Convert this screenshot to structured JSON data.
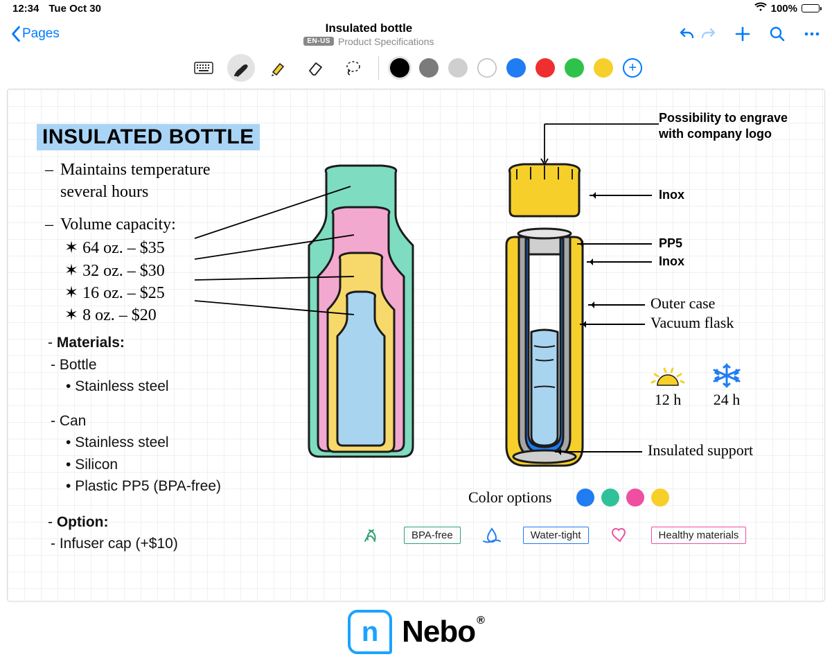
{
  "status": {
    "time": "12:34",
    "date": "Tue Oct 30",
    "battery_pct": "100%"
  },
  "nav": {
    "back_label": "Pages",
    "title": "Insulated bottle",
    "lang_badge": "EN-US",
    "subtitle": "Product Specifications"
  },
  "toolbar": {
    "tools": [
      "keyboard",
      "pen",
      "highlighter",
      "eraser",
      "lasso"
    ],
    "active_tool_index": 1,
    "colors": [
      "#000000",
      "#7b7b7b",
      "#cfcfcf",
      "#ffffff",
      "#1f7cf2",
      "#ef2f2f",
      "#2fc24b",
      "#f6cf2a"
    ],
    "selected_color_index": 0,
    "white_index": 3,
    "add_color_accent": "#007aff"
  },
  "page": {
    "title": "INSULATED BOTTLE",
    "title_highlight": "#a9d4f5",
    "hand_notes": {
      "line1": "Maintains temperature",
      "line1b": "several hours",
      "line2": "Volume capacity:",
      "prices": [
        {
          "size": "64 oz.",
          "price": "$35"
        },
        {
          "size": "32 oz.",
          "price": "$30"
        },
        {
          "size": "16 oz.",
          "price": "$25"
        },
        {
          "size": "8 oz.",
          "price": "$20"
        }
      ],
      "star": "✶"
    },
    "typed": {
      "materials_h": "Materials:",
      "bottle_h": "Bottle",
      "bottle_items": [
        "Stainless steel"
      ],
      "can_h": "Can",
      "can_items": [
        "Stainless steel",
        "Silicon",
        "Plastic PP5 (BPA-free)"
      ],
      "option_h": "Option:",
      "option_items": [
        "Infuser cap (+$10)"
      ]
    },
    "bottle_sizes": {
      "colors": {
        "64": "#7edcc0",
        "32": "#f3a8cf",
        "16": "#f6d96a",
        "8": "#a9d4f0"
      },
      "stroke": "#1b1b1b"
    },
    "cutaway": {
      "cap_color": "#f6cf2a",
      "outer_color": "#f6cf2a",
      "inner_wall_color": "#a6a6a6",
      "vacuum_color": "#1f7cf2",
      "liquid_color": "#a9d4f0",
      "stroke": "#1b1b1b"
    },
    "annotations": {
      "engrave": "Possibility to engrave with company logo",
      "inox1": "Inox",
      "pp5": "PP5",
      "inox2": "Inox",
      "outer_case": "Outer case",
      "vacuum_flask": "Vacuum flask",
      "insulated_support": "Insulated support",
      "color_options_label": "Color options",
      "option_colors": [
        "#1f7cf2",
        "#2fc29a",
        "#ef4fa0",
        "#f6cf2a"
      ],
      "temp": {
        "hot_label": "12 h",
        "cold_label": "24 h",
        "hot_color": "#f6cf2a",
        "cold_color": "#1f7cf2"
      },
      "badges": [
        {
          "label": "BPA-free",
          "color": "#2fa26f"
        },
        {
          "label": "Water-tight",
          "color": "#1f7cf2"
        },
        {
          "label": "Healthy materials",
          "color": "#ef4fa0"
        }
      ]
    }
  },
  "footer": {
    "brand": "Nebo",
    "glyph": "n",
    "accent": "#1aa3ff"
  }
}
